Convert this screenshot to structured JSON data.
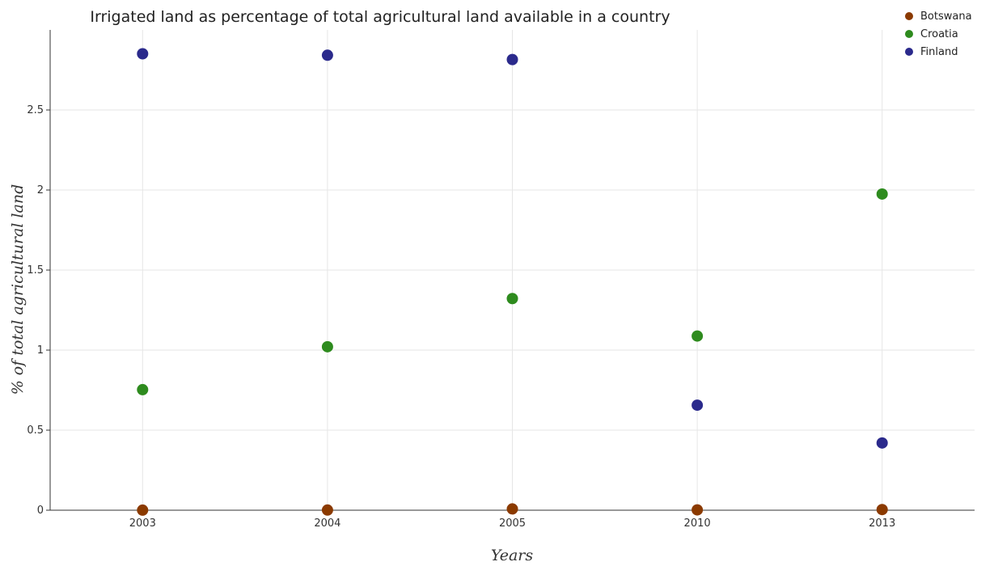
{
  "chart_data": {
    "type": "scatter",
    "title": "Irrigated land as percentage of total agricultural land available in a country",
    "xlabel": "Years",
    "ylabel": "% of total agricultural land",
    "categories": [
      "2003",
      "2004",
      "2005",
      "2010",
      "2013"
    ],
    "ylim": [
      0,
      3.0
    ],
    "yticks": [
      0,
      0.5,
      1,
      1.5,
      2,
      2.5
    ],
    "ytick_labels": [
      "0",
      "0.5",
      "1",
      "1.5",
      "2",
      "2.5"
    ],
    "grid": true,
    "legend_position": "top-right",
    "series": [
      {
        "name": "Botswana",
        "color": "#8B3A00",
        "values": [
          0.0004,
          0.001,
          0.008,
          0.002,
          0.004
        ]
      },
      {
        "name": "Croatia",
        "color": "#2E8B1E",
        "values": [
          0.753,
          1.021,
          1.322,
          1.088,
          1.975
        ]
      },
      {
        "name": "Finland",
        "color": "#2B2A8C",
        "values": [
          2.851,
          2.842,
          2.815,
          0.656,
          0.42
        ]
      }
    ]
  }
}
